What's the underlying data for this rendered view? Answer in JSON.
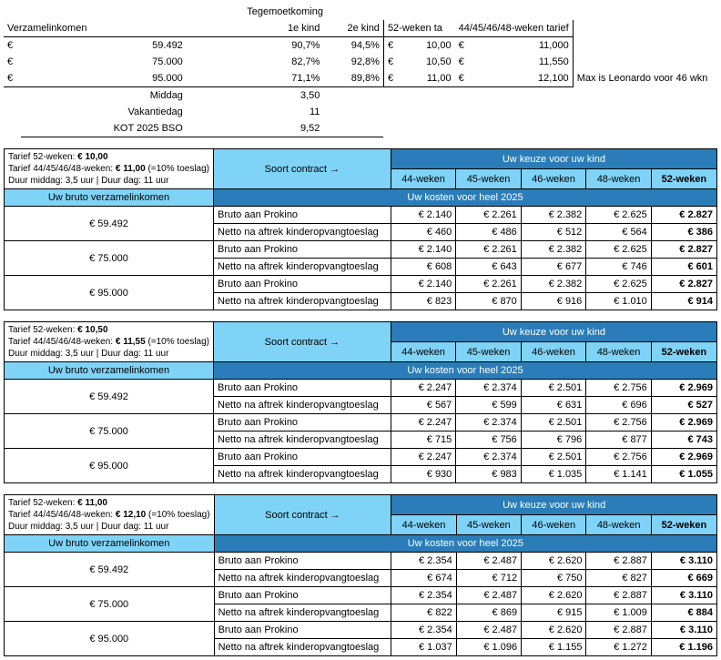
{
  "top": {
    "title": "Tegemoetkoming",
    "hdr_income": "Verzamelinkomen",
    "hdr_1e": "1e kind",
    "hdr_2e": "2e kind",
    "hdr_52t": "52-weken ta",
    "hdr_44t": "44/45/46/48-weken tarief",
    "rows": [
      {
        "cur": "€",
        "inc": "59.492",
        "k1": "90,7%",
        "k2": "94,5%",
        "c52": "€",
        "t52": "10,00",
        "c44": "€",
        "t44": "11,000",
        "note": ""
      },
      {
        "cur": "€",
        "inc": "75.000",
        "k1": "82,7%",
        "k2": "92,8%",
        "c52": "€",
        "t52": "10,50",
        "c44": "€",
        "t44": "11,550",
        "note": ""
      },
      {
        "cur": "€",
        "inc": "95.000",
        "k1": "71,1%",
        "k2": "89,8%",
        "c52": "€",
        "t52": "11,00",
        "c44": "€",
        "t44": "12,100",
        "note": "Max is Leonardo voor 46 wkn"
      }
    ],
    "extra": [
      {
        "label": "Middag",
        "val": "3,50"
      },
      {
        "label": "Vakantiedag",
        "val": "11"
      },
      {
        "label": "KOT 2025 BSO",
        "val": "9,52"
      }
    ]
  },
  "blocks": [
    {
      "tarief52_label": "Tarief 52-weken: ",
      "tarief52_val": "€ 10,00",
      "tarief44_label": "Tarief 44/45/46/48-weken: ",
      "tarief44_val": "€ 11,00",
      "toeslag": "   (=10% toeslag)",
      "duur": "Duur middag: 3,5 uur | Duur dag: 11 uur",
      "keuze": "Uw keuze voor uw kind",
      "soort": "Soort contract  →",
      "cols": [
        "44-weken",
        "45-weken",
        "46-weken",
        "48-weken",
        "52-weken"
      ],
      "verz": "Uw bruto verzamelinkomen",
      "kosten": "Uw kosten voor heel 2025",
      "bruto": "Bruto aan Prokino",
      "netto": "Netto na aftrek kinderopvangtoeslag",
      "rows": [
        {
          "inc": "€ 59.492",
          "b": [
            "€ 2.140",
            "€ 2.261",
            "€ 2.382",
            "€ 2.625",
            "€ 2.827"
          ],
          "n": [
            "€ 460",
            "€ 486",
            "€ 512",
            "€ 564",
            "€ 386"
          ]
        },
        {
          "inc": "€ 75.000",
          "b": [
            "€ 2.140",
            "€ 2.261",
            "€ 2.382",
            "€ 2.625",
            "€ 2.827"
          ],
          "n": [
            "€ 608",
            "€ 643",
            "€ 677",
            "€ 746",
            "€ 601"
          ]
        },
        {
          "inc": "€ 95.000",
          "b": [
            "€ 2.140",
            "€ 2.261",
            "€ 2.382",
            "€ 2.625",
            "€ 2.827"
          ],
          "n": [
            "€ 823",
            "€ 870",
            "€ 916",
            "€ 1.010",
            "€ 914"
          ]
        }
      ]
    },
    {
      "tarief52_label": "Tarief 52-weken: ",
      "tarief52_val": "€ 10,50",
      "tarief44_label": "Tarief 44/45/46/48-weken: ",
      "tarief44_val": "€ 11,55",
      "toeslag": "   (=10% toeslag)",
      "duur": "Duur middag: 3,5 uur | Duur dag: 11 uur",
      "keuze": "Uw keuze voor uw kind",
      "soort": "Soort contract  →",
      "cols": [
        "44-weken",
        "45-weken",
        "46-weken",
        "48-weken",
        "52-weken"
      ],
      "verz": "Uw bruto verzamelinkomen",
      "kosten": "Uw kosten voor heel 2025",
      "bruto": "Bruto aan Prokino",
      "netto": "Netto na aftrek kinderopvangtoeslag",
      "rows": [
        {
          "inc": "€ 59.492",
          "b": [
            "€ 2.247",
            "€ 2.374",
            "€ 2.501",
            "€ 2.756",
            "€ 2.969"
          ],
          "n": [
            "€ 567",
            "€ 599",
            "€ 631",
            "€ 696",
            "€ 527"
          ]
        },
        {
          "inc": "€ 75.000",
          "b": [
            "€ 2.247",
            "€ 2.374",
            "€ 2.501",
            "€ 2.756",
            "€ 2.969"
          ],
          "n": [
            "€ 715",
            "€ 756",
            "€ 796",
            "€ 877",
            "€ 743"
          ]
        },
        {
          "inc": "€ 95.000",
          "b": [
            "€ 2.247",
            "€ 2.374",
            "€ 2.501",
            "€ 2.756",
            "€ 2.969"
          ],
          "n": [
            "€ 930",
            "€ 983",
            "€ 1.035",
            "€ 1.141",
            "€ 1.055"
          ]
        }
      ]
    },
    {
      "tarief52_label": "Tarief 52-weken: ",
      "tarief52_val": "€ 11,00",
      "tarief44_label": "Tarief 44/45/46/48-weken: ",
      "tarief44_val": "€ 12,10",
      "toeslag": "   (=10% toeslag)",
      "duur": "Duur middag: 3,5 uur | Duur dag: 11 uur",
      "keuze": "Uw keuze voor uw kind",
      "soort": "Soort contract  →",
      "cols": [
        "44-weken",
        "45-weken",
        "46-weken",
        "48-weken",
        "52-weken"
      ],
      "verz": "Uw bruto verzamelinkomen",
      "kosten": "Uw kosten voor heel 2025",
      "bruto": "Bruto aan Prokino",
      "netto": "Netto na aftrek kinderopvangtoeslag",
      "rows": [
        {
          "inc": "€ 59.492",
          "b": [
            "€ 2.354",
            "€ 2.487",
            "€ 2.620",
            "€ 2.887",
            "€ 3.110"
          ],
          "n": [
            "€ 674",
            "€ 712",
            "€ 750",
            "€ 827",
            "€ 669"
          ]
        },
        {
          "inc": "€ 75.000",
          "b": [
            "€ 2.354",
            "€ 2.487",
            "€ 2.620",
            "€ 2.887",
            "€ 3.110"
          ],
          "n": [
            "€ 822",
            "€ 869",
            "€ 915",
            "€ 1.009",
            "€ 884"
          ]
        },
        {
          "inc": "€ 95.000",
          "b": [
            "€ 2.354",
            "€ 2.487",
            "€ 2.620",
            "€ 2.887",
            "€ 3.110"
          ],
          "n": [
            "€ 1.037",
            "€ 1.096",
            "€ 1.155",
            "€ 1.272",
            "€ 1.196"
          ]
        }
      ]
    }
  ]
}
